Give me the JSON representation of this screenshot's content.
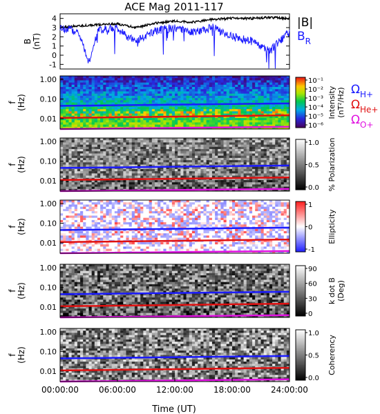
{
  "chart_data": {
    "type": "heatmap",
    "title": "ACE Mag 2011-117",
    "xlabel": "Time (UT)",
    "x_ticks": [
      "00:00:00",
      "06:00:00",
      "12:00:00",
      "18:00:00",
      "24:00:00"
    ],
    "xlim": [
      0,
      24
    ],
    "field_panel": {
      "type": "line",
      "ylabel": "B",
      "yunit": "(nT)",
      "y_ticks": [
        "-1",
        "0",
        "1",
        "2",
        "3",
        "4"
      ],
      "ylim": [
        -1.5,
        4.5
      ],
      "series": [
        {
          "name": "|B|",
          "color": "#000000",
          "x": [
            0,
            2,
            4,
            6,
            8,
            10,
            12,
            14,
            16,
            18,
            20,
            22,
            24
          ],
          "values": [
            3.0,
            3.2,
            3.3,
            3.4,
            3.0,
            3.5,
            3.7,
            3.6,
            3.9,
            4.0,
            4.0,
            4.1,
            4.0
          ]
        },
        {
          "name": "B",
          "subscript": "R",
          "color": "#1a1aff",
          "x": [
            0,
            2,
            3,
            4,
            6,
            7,
            8,
            10,
            12,
            14,
            16,
            18,
            20,
            22,
            24
          ],
          "values": [
            3.0,
            2.5,
            -0.8,
            2.8,
            3.0,
            2.0,
            1.5,
            2.7,
            3.0,
            2.5,
            3.0,
            2.0,
            1.5,
            0.5,
            2.5
          ]
        }
      ]
    },
    "f_axis": {
      "label": "f",
      "unit": "(Hz)",
      "ticks": [
        "1.00",
        "0.10",
        "0.01"
      ],
      "scale": "log",
      "ylim": [
        0.003,
        1.5
      ]
    },
    "gyro_lines": [
      {
        "name": "Ω",
        "subscript": "H+",
        "color": "#1a1aff",
        "values": [
          0.045,
          0.06
        ]
      },
      {
        "name": "Ω",
        "subscript": "He+",
        "color": "#e01010",
        "values": [
          0.011,
          0.015
        ]
      },
      {
        "name": "Ω",
        "subscript": "O+",
        "color": "#e010e0",
        "values": [
          0.003,
          0.0039
        ]
      }
    ],
    "spectral_panels": [
      {
        "key": "intensity",
        "colormap": "rainbow",
        "colorbar_labels": [
          "Intensity",
          "(nT²/Hz)"
        ],
        "colorbar_ticks": [
          "10⁻¹",
          "10⁻²",
          "10⁻³",
          "10⁻⁴",
          "10⁻⁵",
          "10⁻⁶"
        ]
      },
      {
        "key": "polarization",
        "colormap": "gray",
        "colorbar_labels": [
          "% Polarization"
        ],
        "colorbar_ticks": [
          "1.0",
          "0.5",
          "0.0"
        ]
      },
      {
        "key": "ellipticity",
        "colormap": "blue-white-red",
        "colorbar_labels": [
          "Ellipticity"
        ],
        "colorbar_ticks": [
          "1",
          "0",
          "-1"
        ]
      },
      {
        "key": "kdotb",
        "colormap": "gray",
        "colorbar_labels": [
          "k dot B",
          "(Deg)"
        ],
        "colorbar_ticks": [
          "90",
          "60",
          "30",
          "0"
        ]
      },
      {
        "key": "coherency",
        "colormap": "gray",
        "colorbar_labels": [
          "Coherency"
        ],
        "colorbar_ticks": [
          "1.0",
          "0.5",
          "0.0"
        ]
      }
    ]
  }
}
